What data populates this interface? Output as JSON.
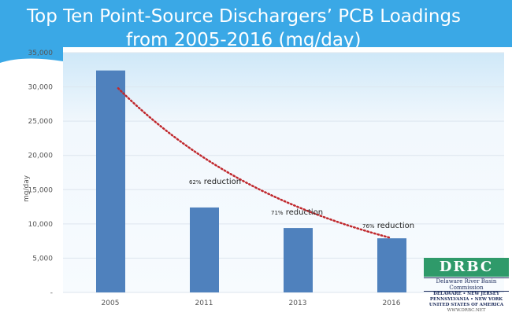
{
  "title": {
    "line1": "Top Ten Point-Source Dischargers’ PCB Loadings",
    "line2": "from 2005-2016 (mg/day)"
  },
  "colors": {
    "bar": "#4f81bd",
    "trendline": "#c0282d",
    "banner": "#3aa8e6"
  },
  "chart_data": {
    "type": "bar",
    "categories": [
      "2005",
      "2011",
      "2013",
      "2016"
    ],
    "values": [
      32400,
      12400,
      9400,
      7900
    ],
    "ylabel": "mg/day",
    "ylim": [
      0,
      35000
    ],
    "yticks": [
      "-",
      "5,000",
      "10,000",
      "15,000",
      "20,000",
      "25,000",
      "30,000",
      "35,000"
    ],
    "grid": true,
    "trendline": "exponential, dotted",
    "annotations": [
      {
        "pct": "62%",
        "text": " reduction",
        "category": "2011"
      },
      {
        "pct": "71%",
        "text": " reduction",
        "category": "2013"
      },
      {
        "pct": "76%",
        "text": " reduction",
        "category": "2016"
      }
    ]
  },
  "logo": {
    "mark": "DRBC",
    "name": "Delaware River Basin Commission",
    "states1": "DELAWARE • NEW JERSEY",
    "states2": "PENNSYLVANIA • NEW YORK",
    "states3": "UNITED STATES OF AMERICA",
    "url": "WWW.DRBC.NET"
  }
}
